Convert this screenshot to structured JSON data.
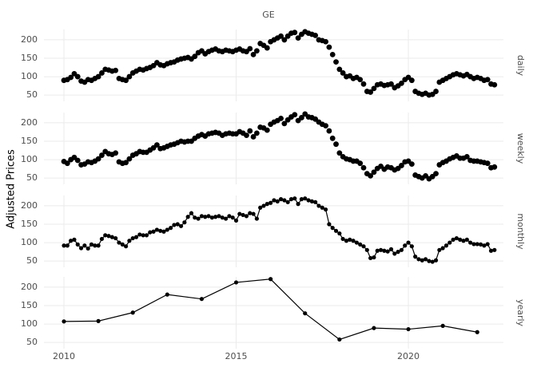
{
  "chart_data": {
    "type": "scatter",
    "title": "GE",
    "ylabel": "Adjusted Prices",
    "xlim": [
      2009.42,
      2022.76
    ],
    "xticks": [
      2010,
      2015,
      2020
    ],
    "ylim": [
      33,
      228
    ],
    "yticks": [
      50,
      100,
      150,
      200
    ],
    "grid": true,
    "color": "#000000",
    "series": [
      {
        "name": "daily",
        "lines": false,
        "x": [
          2010,
          2010.1,
          2010.2,
          2010.3,
          2010.4,
          2010.5,
          2010.6,
          2010.7,
          2010.8,
          2010.9,
          2011,
          2011.1,
          2011.2,
          2011.3,
          2011.4,
          2011.5,
          2011.6,
          2011.7,
          2011.8,
          2011.9,
          2012,
          2012.1,
          2012.2,
          2012.3,
          2012.4,
          2012.5,
          2012.6,
          2012.7,
          2012.8,
          2012.9,
          2013,
          2013.1,
          2013.2,
          2013.3,
          2013.4,
          2013.5,
          2013.6,
          2013.7,
          2013.8,
          2013.9,
          2014,
          2014.1,
          2014.2,
          2014.3,
          2014.4,
          2014.5,
          2014.6,
          2014.7,
          2014.8,
          2014.9,
          2015,
          2015.1,
          2015.2,
          2015.3,
          2015.4,
          2015.5,
          2015.6,
          2015.7,
          2015.8,
          2015.9,
          2016,
          2016.1,
          2016.2,
          2016.3,
          2016.4,
          2016.5,
          2016.6,
          2016.7,
          2016.8,
          2016.9,
          2017,
          2017.1,
          2017.2,
          2017.3,
          2017.4,
          2017.5,
          2017.6,
          2017.7,
          2017.8,
          2017.9,
          2018,
          2018.1,
          2018.2,
          2018.3,
          2018.4,
          2018.5,
          2018.6,
          2018.7,
          2018.8,
          2018.9,
          2019,
          2019.1,
          2019.2,
          2019.3,
          2019.4,
          2019.5,
          2019.6,
          2019.7,
          2019.8,
          2019.9,
          2020,
          2020.1,
          2020.2,
          2020.3,
          2020.4,
          2020.5,
          2020.6,
          2020.7,
          2020.8,
          2020.9,
          2021,
          2021.1,
          2021.2,
          2021.3,
          2021.4,
          2021.5,
          2021.6,
          2021.7,
          2021.8,
          2021.9,
          2022,
          2022.1,
          2022.2,
          2022.3,
          2022.4,
          2022.5
        ],
        "values": [
          90,
          92,
          98,
          108,
          100,
          88,
          85,
          92,
          90,
          95,
          100,
          110,
          120,
          118,
          115,
          117,
          95,
          92,
          90,
          100,
          110,
          115,
          120,
          118,
          122,
          125,
          130,
          138,
          132,
          130,
          135,
          138,
          140,
          145,
          148,
          150,
          152,
          148,
          155,
          165,
          170,
          162,
          168,
          172,
          175,
          170,
          168,
          172,
          170,
          168,
          172,
          175,
          170,
          168,
          176,
          160,
          170,
          190,
          185,
          178,
          195,
          200,
          205,
          210,
          200,
          210,
          218,
          220,
          205,
          215,
          222,
          218,
          215,
          212,
          200,
          198,
          195,
          180,
          160,
          140,
          120,
          110,
          100,
          102,
          95,
          98,
          92,
          80,
          60,
          58,
          68,
          78,
          80,
          76,
          78,
          80,
          70,
          75,
          82,
          92,
          98,
          90,
          60,
          55,
          52,
          55,
          50,
          52,
          60,
          85,
          90,
          95,
          100,
          105,
          108,
          105,
          102,
          106,
          100,
          95,
          98,
          95,
          90,
          92,
          80,
          78
        ]
      },
      {
        "name": "weekly",
        "lines": false,
        "x": [
          2010,
          2010.1,
          2010.2,
          2010.3,
          2010.4,
          2010.5,
          2010.6,
          2010.7,
          2010.8,
          2010.9,
          2011,
          2011.1,
          2011.2,
          2011.3,
          2011.4,
          2011.5,
          2011.6,
          2011.7,
          2011.8,
          2011.9,
          2012,
          2012.1,
          2012.2,
          2012.3,
          2012.4,
          2012.5,
          2012.6,
          2012.7,
          2012.8,
          2012.9,
          2013,
          2013.1,
          2013.2,
          2013.3,
          2013.4,
          2013.5,
          2013.6,
          2013.7,
          2013.8,
          2013.9,
          2014,
          2014.1,
          2014.2,
          2014.3,
          2014.4,
          2014.5,
          2014.6,
          2014.7,
          2014.8,
          2014.9,
          2015,
          2015.1,
          2015.2,
          2015.3,
          2015.4,
          2015.5,
          2015.6,
          2015.7,
          2015.8,
          2015.9,
          2016,
          2016.1,
          2016.2,
          2016.3,
          2016.4,
          2016.5,
          2016.6,
          2016.7,
          2016.8,
          2016.9,
          2017,
          2017.1,
          2017.2,
          2017.3,
          2017.4,
          2017.5,
          2017.6,
          2017.7,
          2017.8,
          2017.9,
          2018,
          2018.1,
          2018.2,
          2018.3,
          2018.4,
          2018.5,
          2018.6,
          2018.7,
          2018.8,
          2018.9,
          2019,
          2019.1,
          2019.2,
          2019.3,
          2019.4,
          2019.5,
          2019.6,
          2019.7,
          2019.8,
          2019.9,
          2020,
          2020.1,
          2020.2,
          2020.3,
          2020.4,
          2020.5,
          2020.6,
          2020.7,
          2020.8,
          2020.9,
          2021,
          2021.1,
          2021.2,
          2021.3,
          2021.4,
          2021.5,
          2021.6,
          2021.7,
          2021.8,
          2021.9,
          2022,
          2022.1,
          2022.2,
          2022.3,
          2022.4,
          2022.5
        ],
        "values": [
          95,
          90,
          100,
          106,
          98,
          86,
          88,
          94,
          92,
          96,
          102,
          112,
          122,
          116,
          114,
          118,
          94,
          90,
          92,
          102,
          112,
          116,
          122,
          120,
          120,
          126,
          132,
          140,
          130,
          132,
          136,
          140,
          142,
          146,
          150,
          148,
          150,
          150,
          158,
          164,
          168,
          164,
          170,
          172,
          174,
          172,
          166,
          170,
          172,
          170,
          170,
          176,
          172,
          166,
          178,
          162,
          172,
          188,
          186,
          180,
          196,
          202,
          206,
          212,
          198,
          208,
          216,
          222,
          206,
          214,
          224,
          216,
          214,
          210,
          202,
          196,
          192,
          178,
          158,
          142,
          118,
          108,
          102,
          100,
          96,
          96,
          90,
          78,
          62,
          56,
          66,
          76,
          82,
          74,
          80,
          78,
          72,
          76,
          84,
          94,
          96,
          88,
          58,
          54,
          50,
          56,
          48,
          54,
          62,
          86,
          92,
          96,
          102,
          106,
          110,
          104,
          104,
          108,
          98,
          96,
          96,
          94,
          92,
          90,
          78,
          80
        ]
      },
      {
        "name": "monthly",
        "lines": true,
        "x": [
          2010,
          2010.1,
          2010.2,
          2010.3,
          2010.4,
          2010.5,
          2010.6,
          2010.7,
          2010.8,
          2010.9,
          2011,
          2011.1,
          2011.2,
          2011.3,
          2011.4,
          2011.5,
          2011.6,
          2011.7,
          2011.8,
          2011.9,
          2012,
          2012.1,
          2012.2,
          2012.3,
          2012.4,
          2012.5,
          2012.6,
          2012.7,
          2012.8,
          2012.9,
          2013,
          2013.1,
          2013.2,
          2013.3,
          2013.4,
          2013.5,
          2013.6,
          2013.7,
          2013.8,
          2013.9,
          2014,
          2014.1,
          2014.2,
          2014.3,
          2014.4,
          2014.5,
          2014.6,
          2014.7,
          2014.8,
          2014.9,
          2015,
          2015.1,
          2015.2,
          2015.3,
          2015.4,
          2015.5,
          2015.6,
          2015.7,
          2015.8,
          2015.9,
          2016,
          2016.1,
          2016.2,
          2016.3,
          2016.4,
          2016.5,
          2016.6,
          2016.7,
          2016.8,
          2016.9,
          2017,
          2017.1,
          2017.2,
          2017.3,
          2017.4,
          2017.5,
          2017.6,
          2017.7,
          2017.8,
          2017.9,
          2018,
          2018.1,
          2018.2,
          2018.3,
          2018.4,
          2018.5,
          2018.6,
          2018.7,
          2018.8,
          2018.9,
          2019,
          2019.1,
          2019.2,
          2019.3,
          2019.4,
          2019.5,
          2019.6,
          2019.7,
          2019.8,
          2019.9,
          2020,
          2020.1,
          2020.2,
          2020.3,
          2020.4,
          2020.5,
          2020.6,
          2020.7,
          2020.8,
          2020.9,
          2021,
          2021.1,
          2021.2,
          2021.3,
          2021.4,
          2021.5,
          2021.6,
          2021.7,
          2021.8,
          2021.9,
          2022,
          2022.1,
          2022.2,
          2022.3,
          2022.4,
          2022.5
        ],
        "values": [
          92,
          92,
          105,
          108,
          95,
          85,
          92,
          84,
          95,
          92,
          92,
          110,
          120,
          118,
          115,
          112,
          100,
          95,
          90,
          105,
          112,
          115,
          122,
          120,
          120,
          128,
          130,
          135,
          132,
          130,
          135,
          140,
          148,
          150,
          145,
          155,
          170,
          180,
          168,
          165,
          172,
          170,
          172,
          168,
          170,
          172,
          168,
          165,
          172,
          168,
          160,
          178,
          175,
          172,
          180,
          178,
          165,
          195,
          200,
          205,
          208,
          215,
          212,
          218,
          215,
          210,
          218,
          220,
          205,
          218,
          220,
          215,
          212,
          210,
          200,
          195,
          190,
          150,
          140,
          132,
          125,
          110,
          105,
          108,
          105,
          100,
          95,
          90,
          80,
          58,
          60,
          78,
          80,
          78,
          76,
          82,
          70,
          75,
          80,
          92,
          100,
          90,
          62,
          55,
          52,
          55,
          50,
          48,
          52,
          80,
          85,
          92,
          100,
          108,
          112,
          108,
          105,
          108,
          100,
          96,
          96,
          95,
          92,
          96,
          78,
          80
        ]
      },
      {
        "name": "yearly",
        "lines": true,
        "x": [
          2010,
          2011,
          2012,
          2013,
          2014,
          2015,
          2016,
          2017,
          2018,
          2019,
          2020,
          2021,
          2022
        ],
        "values": [
          107,
          108,
          131,
          180,
          168,
          213,
          222,
          129,
          58,
          89,
          86,
          95,
          78
        ]
      }
    ]
  }
}
